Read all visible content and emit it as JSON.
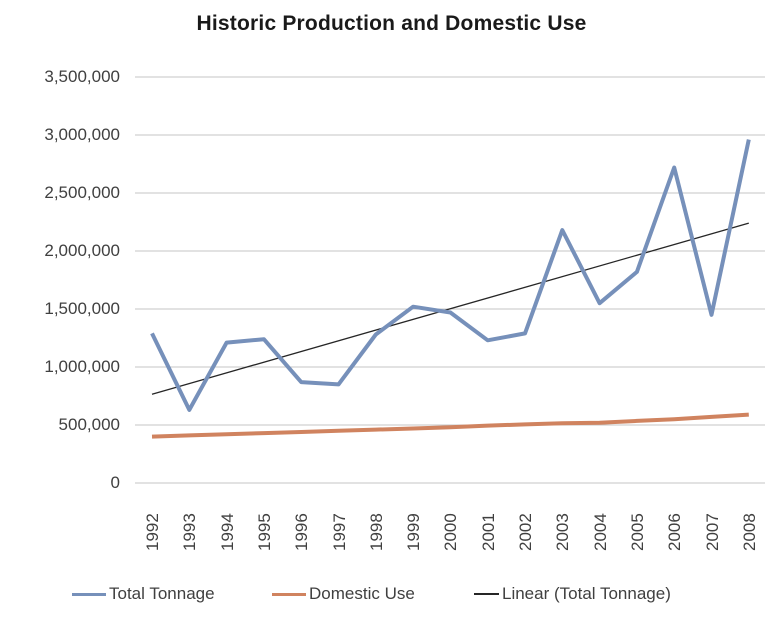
{
  "title": "Historic Production and Domestic Use",
  "colors": {
    "total_tonnage": "#7690BA",
    "domestic_use": "#D0835F",
    "trendline": "#262626",
    "gridline": "#C5C5C5",
    "title_text": "#1A1A1A",
    "axis_text": "#404040",
    "background": "#FFFFFF"
  },
  "legend": {
    "items": [
      {
        "label": "Total Tonnage",
        "color": "#7690BA",
        "thickness": 3,
        "swatch_width": 34
      },
      {
        "label": "Domestic Use",
        "color": "#D0835F",
        "thickness": 3,
        "swatch_width": 34
      },
      {
        "label": "Linear (Total Tonnage)",
        "color": "#262626",
        "thickness": 2,
        "swatch_width": 25
      }
    ]
  },
  "chart_data": {
    "type": "line",
    "title": "Historic Production and Domestic Use",
    "categories": [
      "1992",
      "1993",
      "1994",
      "1995",
      "1996",
      "1997",
      "1998",
      "1999",
      "2000",
      "2001",
      "2002",
      "2003",
      "2004",
      "2005",
      "2006",
      "2007",
      "2008"
    ],
    "series": [
      {
        "name": "Total Tonnage",
        "color": "#7690BA",
        "values": [
          1290000,
          630000,
          1210000,
          1240000,
          870000,
          850000,
          1280000,
          1520000,
          1470000,
          1230000,
          1290000,
          2180000,
          1550000,
          1820000,
          2720000,
          1450000,
          2960000
        ]
      },
      {
        "name": "Domestic Use",
        "color": "#D0835F",
        "values": [
          400000,
          410000,
          420000,
          430000,
          440000,
          450000,
          460000,
          470000,
          480000,
          495000,
          505000,
          515000,
          520000,
          535000,
          550000,
          570000,
          590000
        ]
      },
      {
        "name": "Linear (Total Tonnage)",
        "kind": "trendline",
        "trendline_of": "Total Tonnage",
        "color": "#262626",
        "endpoints": [
          765000,
          2240000
        ]
      }
    ],
    "y_axis": {
      "min": 0,
      "max": 3500000,
      "step": 500000,
      "tick_labels_top_to_bottom": [
        "3,500,000",
        "3,000,000",
        "2,500,000",
        "2,000,000",
        "1,500,000",
        "1,000,000",
        "500,000",
        "0"
      ]
    },
    "x_axis": {
      "label_rotation_deg": -90
    },
    "grid": "horizontal",
    "legend_position": "bottom"
  }
}
